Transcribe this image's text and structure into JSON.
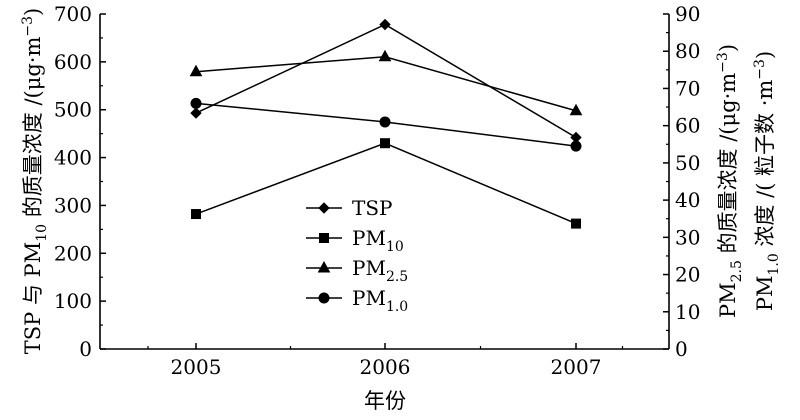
{
  "chart_data": {
    "type": "line",
    "categories": [
      "2005",
      "2006",
      "2007"
    ],
    "xlabel": "年份",
    "left_axis": {
      "label_parts": [
        {
          "t": "TSP 与 PM"
        },
        {
          "t": "10",
          "sub": true
        },
        {
          "t": " 的质量浓度 /(μg·m"
        },
        {
          "t": "−3",
          "sup": true
        },
        {
          "t": ")"
        }
      ],
      "ylim": [
        0,
        700
      ],
      "ticks": [
        "0",
        "100",
        "200",
        "300",
        "400",
        "500",
        "600",
        "700"
      ]
    },
    "right_axis": {
      "ticks": [
        "0",
        "10",
        "20",
        "30",
        "40",
        "50",
        "60",
        "70",
        "80",
        "90"
      ],
      "ylim": [
        0,
        90
      ],
      "label1_parts": [
        {
          "t": "PM"
        },
        {
          "t": "2.5",
          "sub": true
        },
        {
          "t": " 的质量浓度 /(μg·m"
        },
        {
          "t": "−3",
          "sup": true
        },
        {
          "t": ")"
        }
      ],
      "label2_parts": [
        {
          "t": "PM"
        },
        {
          "t": "1.0",
          "sub": true
        },
        {
          "t": " 浓度 /( 粒子数 ·m"
        },
        {
          "t": "−3",
          "sup": true
        },
        {
          "t": ")"
        }
      ]
    },
    "series": [
      {
        "name": "TSP",
        "sub": "",
        "axis": "left",
        "marker": "diamond",
        "values": [
          493,
          678,
          442
        ]
      },
      {
        "name": "PM",
        "sub": "10",
        "axis": "left",
        "marker": "square",
        "values": [
          282,
          430,
          262
        ]
      },
      {
        "name": "PM",
        "sub": "2.5",
        "axis": "right",
        "marker": "triangle",
        "values": [
          74.5,
          78.5,
          64
        ]
      },
      {
        "name": "PM",
        "sub": "1.0",
        "axis": "right",
        "marker": "circle",
        "values": [
          66,
          61,
          54.5
        ]
      }
    ],
    "legend_position": "center-left"
  }
}
